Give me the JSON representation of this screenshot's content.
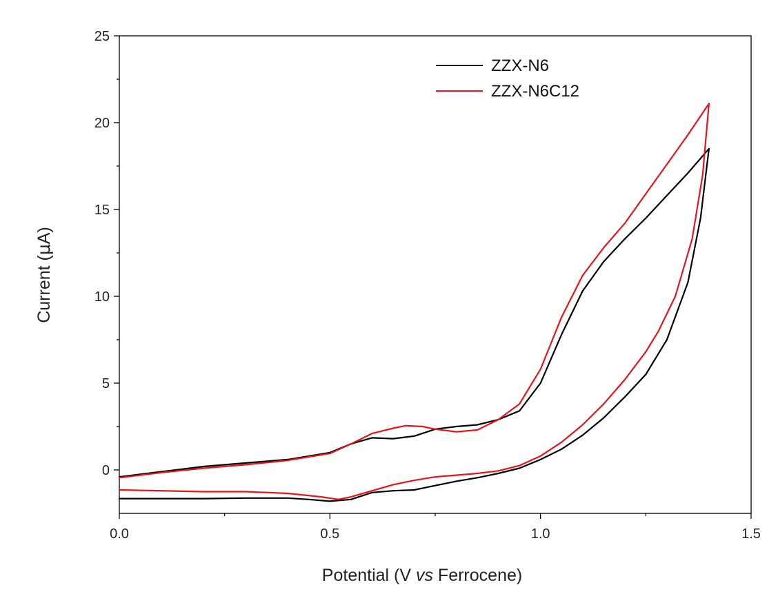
{
  "chart_data": {
    "type": "line",
    "xlabel_parts": [
      "Potential (V ",
      "vs",
      " Ferrocene)"
    ],
    "ylabel_parts": [
      "Current (",
      "μ",
      "A)"
    ],
    "xlim": [
      0,
      1.5
    ],
    "ylim": [
      -2.5,
      25
    ],
    "xticks": [
      "0.0",
      "0.5",
      "1.0",
      "1.5"
    ],
    "xtick_values": [
      0,
      0.5,
      1.0,
      1.5
    ],
    "yticks": [
      "0",
      "5",
      "10",
      "15",
      "20",
      "25"
    ],
    "ytick_values": [
      0,
      5,
      10,
      15,
      20,
      25
    ],
    "grid": false,
    "legend_position": "top-right",
    "series": [
      {
        "name": "ZZX-N6",
        "color": "#000000",
        "points": [
          [
            0.0,
            -0.4
          ],
          [
            0.1,
            -0.1
          ],
          [
            0.2,
            0.2
          ],
          [
            0.3,
            0.4
          ],
          [
            0.4,
            0.6
          ],
          [
            0.5,
            1.0
          ],
          [
            0.55,
            1.5
          ],
          [
            0.6,
            1.85
          ],
          [
            0.65,
            1.8
          ],
          [
            0.7,
            1.95
          ],
          [
            0.75,
            2.35
          ],
          [
            0.8,
            2.5
          ],
          [
            0.85,
            2.6
          ],
          [
            0.9,
            2.9
          ],
          [
            0.95,
            3.4
          ],
          [
            1.0,
            5.0
          ],
          [
            1.05,
            7.8
          ],
          [
            1.1,
            10.3
          ],
          [
            1.15,
            12.0
          ],
          [
            1.2,
            13.3
          ],
          [
            1.25,
            14.5
          ],
          [
            1.3,
            15.8
          ],
          [
            1.35,
            17.1
          ],
          [
            1.4,
            18.5
          ],
          [
            1.38,
            14.5
          ],
          [
            1.35,
            10.8
          ],
          [
            1.3,
            7.5
          ],
          [
            1.25,
            5.5
          ],
          [
            1.2,
            4.2
          ],
          [
            1.15,
            3.0
          ],
          [
            1.1,
            2.0
          ],
          [
            1.05,
            1.2
          ],
          [
            1.0,
            0.6
          ],
          [
            0.95,
            0.1
          ],
          [
            0.9,
            -0.2
          ],
          [
            0.85,
            -0.45
          ],
          [
            0.8,
            -0.65
          ],
          [
            0.75,
            -0.9
          ],
          [
            0.7,
            -1.15
          ],
          [
            0.65,
            -1.2
          ],
          [
            0.6,
            -1.3
          ],
          [
            0.55,
            -1.7
          ],
          [
            0.5,
            -1.8
          ],
          [
            0.45,
            -1.7
          ],
          [
            0.4,
            -1.62
          ],
          [
            0.3,
            -1.62
          ],
          [
            0.2,
            -1.65
          ],
          [
            0.1,
            -1.65
          ],
          [
            0.0,
            -1.65
          ]
        ]
      },
      {
        "name": "ZZX-N6C12",
        "color": "#e8141b",
        "points": [
          [
            0.0,
            -0.45
          ],
          [
            0.1,
            -0.15
          ],
          [
            0.2,
            0.1
          ],
          [
            0.3,
            0.3
          ],
          [
            0.4,
            0.55
          ],
          [
            0.5,
            0.95
          ],
          [
            0.55,
            1.5
          ],
          [
            0.6,
            2.1
          ],
          [
            0.65,
            2.4
          ],
          [
            0.68,
            2.55
          ],
          [
            0.72,
            2.5
          ],
          [
            0.75,
            2.35
          ],
          [
            0.8,
            2.2
          ],
          [
            0.85,
            2.3
          ],
          [
            0.9,
            2.9
          ],
          [
            0.95,
            3.8
          ],
          [
            1.0,
            5.8
          ],
          [
            1.05,
            8.8
          ],
          [
            1.1,
            11.2
          ],
          [
            1.15,
            12.8
          ],
          [
            1.2,
            14.2
          ],
          [
            1.25,
            15.9
          ],
          [
            1.3,
            17.6
          ],
          [
            1.35,
            19.3
          ],
          [
            1.4,
            21.1
          ],
          [
            1.385,
            17.0
          ],
          [
            1.36,
            13.3
          ],
          [
            1.32,
            10.0
          ],
          [
            1.28,
            8.0
          ],
          [
            1.25,
            6.8
          ],
          [
            1.2,
            5.2
          ],
          [
            1.15,
            3.8
          ],
          [
            1.1,
            2.6
          ],
          [
            1.05,
            1.6
          ],
          [
            1.0,
            0.8
          ],
          [
            0.95,
            0.25
          ],
          [
            0.9,
            -0.05
          ],
          [
            0.85,
            -0.2
          ],
          [
            0.8,
            -0.3
          ],
          [
            0.75,
            -0.4
          ],
          [
            0.7,
            -0.6
          ],
          [
            0.65,
            -0.85
          ],
          [
            0.6,
            -1.2
          ],
          [
            0.55,
            -1.55
          ],
          [
            0.52,
            -1.7
          ],
          [
            0.48,
            -1.55
          ],
          [
            0.4,
            -1.35
          ],
          [
            0.3,
            -1.25
          ],
          [
            0.2,
            -1.25
          ],
          [
            0.1,
            -1.2
          ],
          [
            0.0,
            -1.15
          ]
        ]
      }
    ]
  }
}
